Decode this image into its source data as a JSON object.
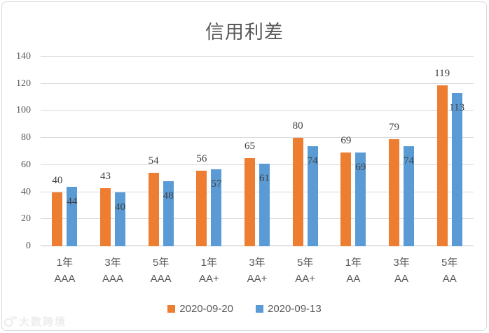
{
  "chart_data": {
    "type": "bar",
    "title": "信用利差",
    "categories": [
      {
        "term": "1年",
        "rating": "AAA"
      },
      {
        "term": "3年",
        "rating": "AAA"
      },
      {
        "term": "5年",
        "rating": "AAA"
      },
      {
        "term": "1年",
        "rating": "AA+"
      },
      {
        "term": "3年",
        "rating": "AA+"
      },
      {
        "term": "5年",
        "rating": "AA+"
      },
      {
        "term": "1年",
        "rating": "AA"
      },
      {
        "term": "3年",
        "rating": "AA"
      },
      {
        "term": "5年",
        "rating": "AA"
      }
    ],
    "series": [
      {
        "name": "2020-09-20",
        "color": "#ED7D31",
        "values": [
          40,
          43,
          54,
          56,
          65,
          80,
          69,
          79,
          119
        ],
        "label_position": "outside-end"
      },
      {
        "name": "2020-09-13",
        "color": "#5B9BD5",
        "values": [
          44,
          40,
          48,
          57,
          61,
          74,
          69,
          74,
          113
        ],
        "label_position": "inside-end"
      }
    ],
    "yticks": [
      0,
      20,
      40,
      60,
      80,
      100,
      120,
      140
    ],
    "ylim": [
      0,
      140
    ],
    "grid": true,
    "legend_position": "bottom"
  },
  "watermark": {
    "text": "大数跨境"
  },
  "colors": {
    "gridline": "#D9D9D9",
    "axis_line": "#BFBFBF",
    "tick_text": "#595959",
    "data_label_text": "#404040",
    "border": "#D9D9D9"
  }
}
